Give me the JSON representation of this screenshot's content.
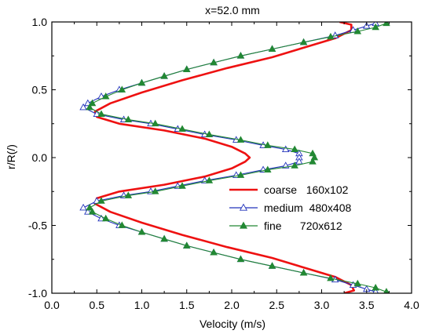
{
  "chart_data": {
    "type": "line",
    "title": "x=52.0 mm",
    "xlabel": "Velocity (m/s)",
    "ylabel": "r/R(/)",
    "xlim": [
      0.0,
      4.0
    ],
    "ylim": [
      -1.0,
      1.0
    ],
    "xticks": [
      "0.0",
      "0.5",
      "1.0",
      "1.5",
      "2.0",
      "2.5",
      "3.0",
      "3.5",
      "4.0"
    ],
    "yticks": [
      "1.0",
      "0.5",
      "0.0",
      "-0.5",
      "-1.0"
    ],
    "legend_position": "lower-right",
    "grid": false,
    "series": [
      {
        "name": "coarse",
        "legend_label": "coarse   160x102",
        "color": "#ee1111",
        "marker": "none",
        "points": [
          [
            3.2,
            1.0
          ],
          [
            3.33,
            0.98
          ],
          [
            3.33,
            0.94
          ],
          [
            3.15,
            0.88
          ],
          [
            2.85,
            0.82
          ],
          [
            2.45,
            0.74
          ],
          [
            1.95,
            0.66
          ],
          [
            1.45,
            0.57
          ],
          [
            1.0,
            0.48
          ],
          [
            0.65,
            0.4
          ],
          [
            0.48,
            0.34
          ],
          [
            0.5,
            0.3
          ],
          [
            0.75,
            0.25
          ],
          [
            1.25,
            0.2
          ],
          [
            1.7,
            0.14
          ],
          [
            2.0,
            0.08
          ],
          [
            2.15,
            0.03
          ],
          [
            2.2,
            0.0
          ],
          [
            2.15,
            -0.03
          ],
          [
            2.0,
            -0.08
          ],
          [
            1.7,
            -0.14
          ],
          [
            1.25,
            -0.2
          ],
          [
            0.75,
            -0.25
          ],
          [
            0.5,
            -0.3
          ],
          [
            0.48,
            -0.34
          ],
          [
            0.65,
            -0.4
          ],
          [
            1.0,
            -0.48
          ],
          [
            1.45,
            -0.57
          ],
          [
            1.95,
            -0.66
          ],
          [
            2.45,
            -0.74
          ],
          [
            2.85,
            -0.82
          ],
          [
            3.15,
            -0.88
          ],
          [
            3.33,
            -0.94
          ],
          [
            3.36,
            -0.98
          ],
          [
            3.25,
            -1.0
          ]
        ]
      },
      {
        "name": "medium",
        "legend_label": "medium  480x408",
        "color": "#2233bb",
        "marker": "open-triangle",
        "points": [
          [
            3.6,
            0.99
          ],
          [
            3.5,
            0.97
          ],
          [
            3.35,
            0.94
          ],
          [
            3.15,
            0.9
          ],
          [
            2.8,
            0.85
          ],
          [
            2.45,
            0.8
          ],
          [
            2.1,
            0.75
          ],
          [
            1.8,
            0.7
          ],
          [
            1.5,
            0.65
          ],
          [
            1.25,
            0.6
          ],
          [
            1.0,
            0.55
          ],
          [
            0.75,
            0.5
          ],
          [
            0.55,
            0.45
          ],
          [
            0.4,
            0.4
          ],
          [
            0.35,
            0.37
          ],
          [
            0.5,
            0.32
          ],
          [
            0.8,
            0.28
          ],
          [
            1.1,
            0.25
          ],
          [
            1.4,
            0.21
          ],
          [
            1.7,
            0.17
          ],
          [
            2.05,
            0.13
          ],
          [
            2.35,
            0.09
          ],
          [
            2.6,
            0.06
          ],
          [
            2.75,
            0.03
          ],
          [
            2.75,
            0.0
          ],
          [
            2.75,
            -0.03
          ],
          [
            2.6,
            -0.06
          ],
          [
            2.35,
            -0.09
          ],
          [
            2.05,
            -0.13
          ],
          [
            1.7,
            -0.17
          ],
          [
            1.4,
            -0.21
          ],
          [
            1.1,
            -0.25
          ],
          [
            0.8,
            -0.28
          ],
          [
            0.5,
            -0.32
          ],
          [
            0.35,
            -0.37
          ],
          [
            0.4,
            -0.4
          ],
          [
            0.55,
            -0.45
          ],
          [
            0.75,
            -0.5
          ],
          [
            1.0,
            -0.55
          ],
          [
            1.25,
            -0.6
          ],
          [
            1.5,
            -0.65
          ],
          [
            1.8,
            -0.7
          ],
          [
            2.1,
            -0.75
          ],
          [
            2.45,
            -0.8
          ],
          [
            2.8,
            -0.85
          ],
          [
            3.15,
            -0.9
          ],
          [
            3.35,
            -0.94
          ],
          [
            3.5,
            -0.97
          ],
          [
            3.6,
            -0.99
          ]
        ]
      },
      {
        "name": "fine",
        "legend_label": "fine      720x612",
        "color": "#228833",
        "marker": "filled-triangle",
        "points": [
          [
            3.72,
            0.99
          ],
          [
            3.6,
            0.96
          ],
          [
            3.4,
            0.93
          ],
          [
            3.1,
            0.89
          ],
          [
            2.8,
            0.85
          ],
          [
            2.45,
            0.8
          ],
          [
            2.1,
            0.75
          ],
          [
            1.8,
            0.7
          ],
          [
            1.5,
            0.65
          ],
          [
            1.25,
            0.6
          ],
          [
            1.0,
            0.55
          ],
          [
            0.78,
            0.5
          ],
          [
            0.6,
            0.45
          ],
          [
            0.45,
            0.4
          ],
          [
            0.42,
            0.37
          ],
          [
            0.55,
            0.32
          ],
          [
            0.85,
            0.28
          ],
          [
            1.15,
            0.25
          ],
          [
            1.45,
            0.21
          ],
          [
            1.75,
            0.17
          ],
          [
            2.1,
            0.13
          ],
          [
            2.4,
            0.09
          ],
          [
            2.7,
            0.06
          ],
          [
            2.9,
            0.03
          ],
          [
            2.92,
            0.0
          ],
          [
            2.9,
            -0.03
          ],
          [
            2.7,
            -0.06
          ],
          [
            2.4,
            -0.09
          ],
          [
            2.1,
            -0.13
          ],
          [
            1.75,
            -0.17
          ],
          [
            1.45,
            -0.21
          ],
          [
            1.15,
            -0.25
          ],
          [
            0.85,
            -0.28
          ],
          [
            0.55,
            -0.32
          ],
          [
            0.42,
            -0.37
          ],
          [
            0.45,
            -0.4
          ],
          [
            0.6,
            -0.45
          ],
          [
            0.78,
            -0.5
          ],
          [
            1.0,
            -0.55
          ],
          [
            1.25,
            -0.6
          ],
          [
            1.5,
            -0.65
          ],
          [
            1.8,
            -0.7
          ],
          [
            2.1,
            -0.75
          ],
          [
            2.45,
            -0.8
          ],
          [
            2.8,
            -0.85
          ],
          [
            3.1,
            -0.89
          ],
          [
            3.4,
            -0.93
          ],
          [
            3.6,
            -0.96
          ],
          [
            3.72,
            -0.99
          ]
        ]
      }
    ]
  }
}
